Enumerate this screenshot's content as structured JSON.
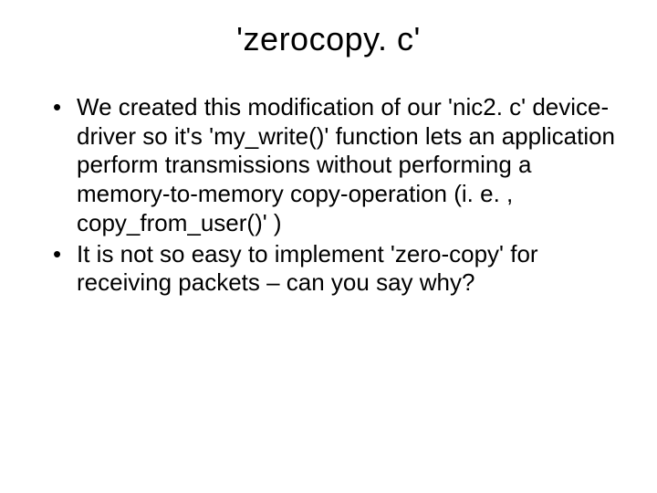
{
  "slide": {
    "title": "'zerocopy. c'",
    "title_fontsize": 36,
    "title_align": "center",
    "bullets": [
      "We created this modification of our 'nic2. c' device-driver so it's 'my_write()' function lets an application perform transmissions without performing a memory-to-memory copy-operation (i. e. , copy_from_user()' )",
      "It is not so easy to implement 'zero-copy' for receiving packets – can you say why?"
    ],
    "body_fontsize": 26,
    "body_lineheight": 1.22,
    "background_color": "#ffffff",
    "text_color": "#000000",
    "font_family": "Arial"
  }
}
